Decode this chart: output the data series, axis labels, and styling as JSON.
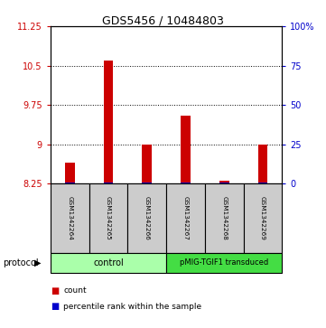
{
  "title": "GDS5456 / 10484803",
  "samples": [
    "GSM1342264",
    "GSM1342265",
    "GSM1342266",
    "GSM1342267",
    "GSM1342268",
    "GSM1342269"
  ],
  "red_values": [
    8.65,
    10.6,
    9.0,
    9.55,
    8.3,
    9.0
  ],
  "blue_values": [
    8.27,
    8.28,
    8.27,
    8.28,
    8.27,
    8.27
  ],
  "ylim_left": [
    8.25,
    11.25
  ],
  "yticks_left": [
    8.25,
    9.0,
    9.75,
    10.5,
    11.25
  ],
  "yticks_right": [
    0,
    25,
    50,
    75,
    100
  ],
  "ytick_labels_left": [
    "8.25",
    "9",
    "9.75",
    "10.5",
    "11.25"
  ],
  "ytick_labels_right": [
    "0",
    "25",
    "50",
    "75",
    "100%"
  ],
  "bar_base": 8.25,
  "control_label": "control",
  "transduced_label": "pMIG-TGIF1 transduced",
  "protocol_label": "protocol",
  "legend_count": "count",
  "legend_percentile": "percentile rank within the sample",
  "red_color": "#CC0000",
  "blue_color": "#0000CC",
  "control_color": "#AAFFAA",
  "transduced_color": "#44DD44",
  "sample_box_color": "#CCCCCC",
  "background_color": "#FFFFFF",
  "left_tick_color": "#CC0000",
  "right_tick_color": "#0000CC",
  "bar_width": 0.25,
  "grid_dotted_at": [
    9.0,
    9.75,
    10.5
  ]
}
